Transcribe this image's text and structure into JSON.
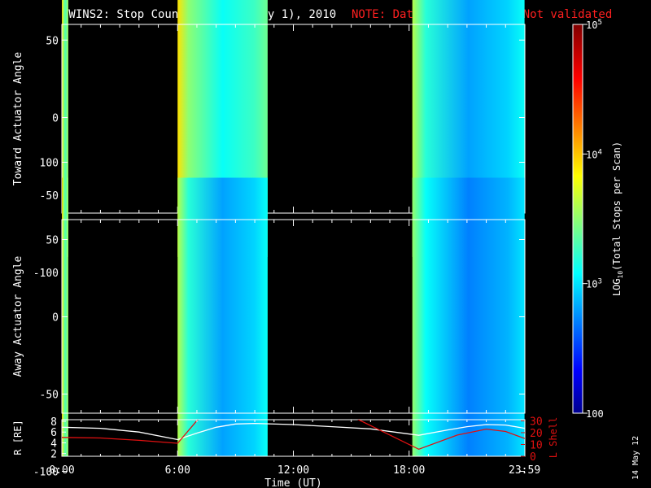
{
  "header": {
    "title": "TWINS2: Stop Counts:  1 Jan (day   1), 2010",
    "note": "NOTE: Data Preliminary - Not validated"
  },
  "side_date": "14 May 12",
  "colors": {
    "background": "#000000",
    "axes": "#ffffff",
    "note": "#ff2020",
    "lshell": "#e01010",
    "radius": "#ffffff"
  },
  "chart_data": [
    {
      "type": "heatmap",
      "name": "toward",
      "ylabel": "Toward Actuator Angle",
      "x_range_hours": [
        0,
        24
      ],
      "ylim": [
        -110,
        110
      ],
      "y_ticks": [
        100,
        50,
        0,
        -50,
        -100
      ],
      "y_tick_labels": [
        "100",
        "50",
        "0",
        "-50",
        "-100"
      ],
      "angle_range": [
        -90,
        90
      ],
      "colorscale": "log10 stop counts (jet)",
      "log10_range": [
        2,
        5
      ],
      "blocks": [
        {
          "start": "00:00",
          "end": "00:20",
          "level_log10": 3.5
        },
        {
          "start": "06:00",
          "end": "10:40",
          "level_log10": 3.3
        },
        {
          "start": "18:10",
          "end": "23:59",
          "level_log10": 3.0
        }
      ]
    },
    {
      "type": "heatmap",
      "name": "away",
      "ylabel": "Away Actuator Angle",
      "x_range_hours": [
        0,
        24
      ],
      "ylim": [
        -110,
        110
      ],
      "y_ticks": [
        100,
        50,
        0,
        -50,
        -100
      ],
      "y_tick_labels": [
        "100",
        "50",
        "0",
        "-50",
        "-100"
      ],
      "angle_range": [
        -90,
        90
      ],
      "colorscale": "log10 stop counts (jet)",
      "log10_range": [
        2,
        5
      ],
      "blocks": [
        {
          "start": "00:00",
          "end": "00:20",
          "level_log10": 3.5
        },
        {
          "start": "06:00",
          "end": "10:40",
          "level_log10": 3.0
        },
        {
          "start": "18:10",
          "end": "23:59",
          "level_log10": 2.9
        }
      ]
    },
    {
      "type": "line",
      "name": "ephemeris",
      "ylabel_left": "R [RE]",
      "ylabel_right": "L Shell",
      "xlabel": "Time (UT)",
      "x_tick_labels": [
        "0:00",
        "6:00",
        "12:00",
        "18:00",
        "23:59"
      ],
      "x_tick_hours": [
        0,
        6,
        12,
        18,
        23.983
      ],
      "left_ticks": [
        2,
        4,
        6,
        8
      ],
      "left_range": [
        1.5,
        8.3
      ],
      "right_ticks": [
        0,
        10,
        20,
        30
      ],
      "right_tick_labels": [
        "0",
        "10",
        "20",
        "30"
      ],
      "right_range": [
        0,
        31
      ],
      "series": [
        {
          "name": "R",
          "axis": "left",
          "x": [
            0,
            2,
            4,
            6,
            7,
            8,
            9,
            10,
            12,
            14,
            16,
            18.5,
            20,
            21,
            22,
            23,
            24
          ],
          "y": [
            6.9,
            6.7,
            6.0,
            4.6,
            5.8,
            6.9,
            7.5,
            7.6,
            7.4,
            7.0,
            6.6,
            5.4,
            6.4,
            7.0,
            7.4,
            7.3,
            6.7
          ]
        },
        {
          "name": "L Shell",
          "axis": "right",
          "x": [
            0,
            2,
            4,
            6,
            7.2,
            15,
            18.5,
            20.5,
            22,
            23,
            24
          ],
          "y": [
            16,
            15.5,
            13.5,
            11,
            34,
            34,
            6,
            18,
            23,
            21,
            15
          ]
        }
      ]
    }
  ],
  "colorbar": {
    "label": "LOG10(Total Stops per Scan)",
    "label_main": "LOG",
    "label_sub": "10",
    "label_rest": "(Total Stops per Scan)",
    "log10_range": [
      2,
      5
    ],
    "ticks": [
      {
        "value_log10": 5,
        "base": "10",
        "exp": "5"
      },
      {
        "value_log10": 4,
        "base": "10",
        "exp": "4"
      },
      {
        "value_log10": 3,
        "base": "10",
        "exp": "3"
      },
      {
        "value_log10": 2,
        "base": "100",
        "exp": ""
      }
    ]
  }
}
